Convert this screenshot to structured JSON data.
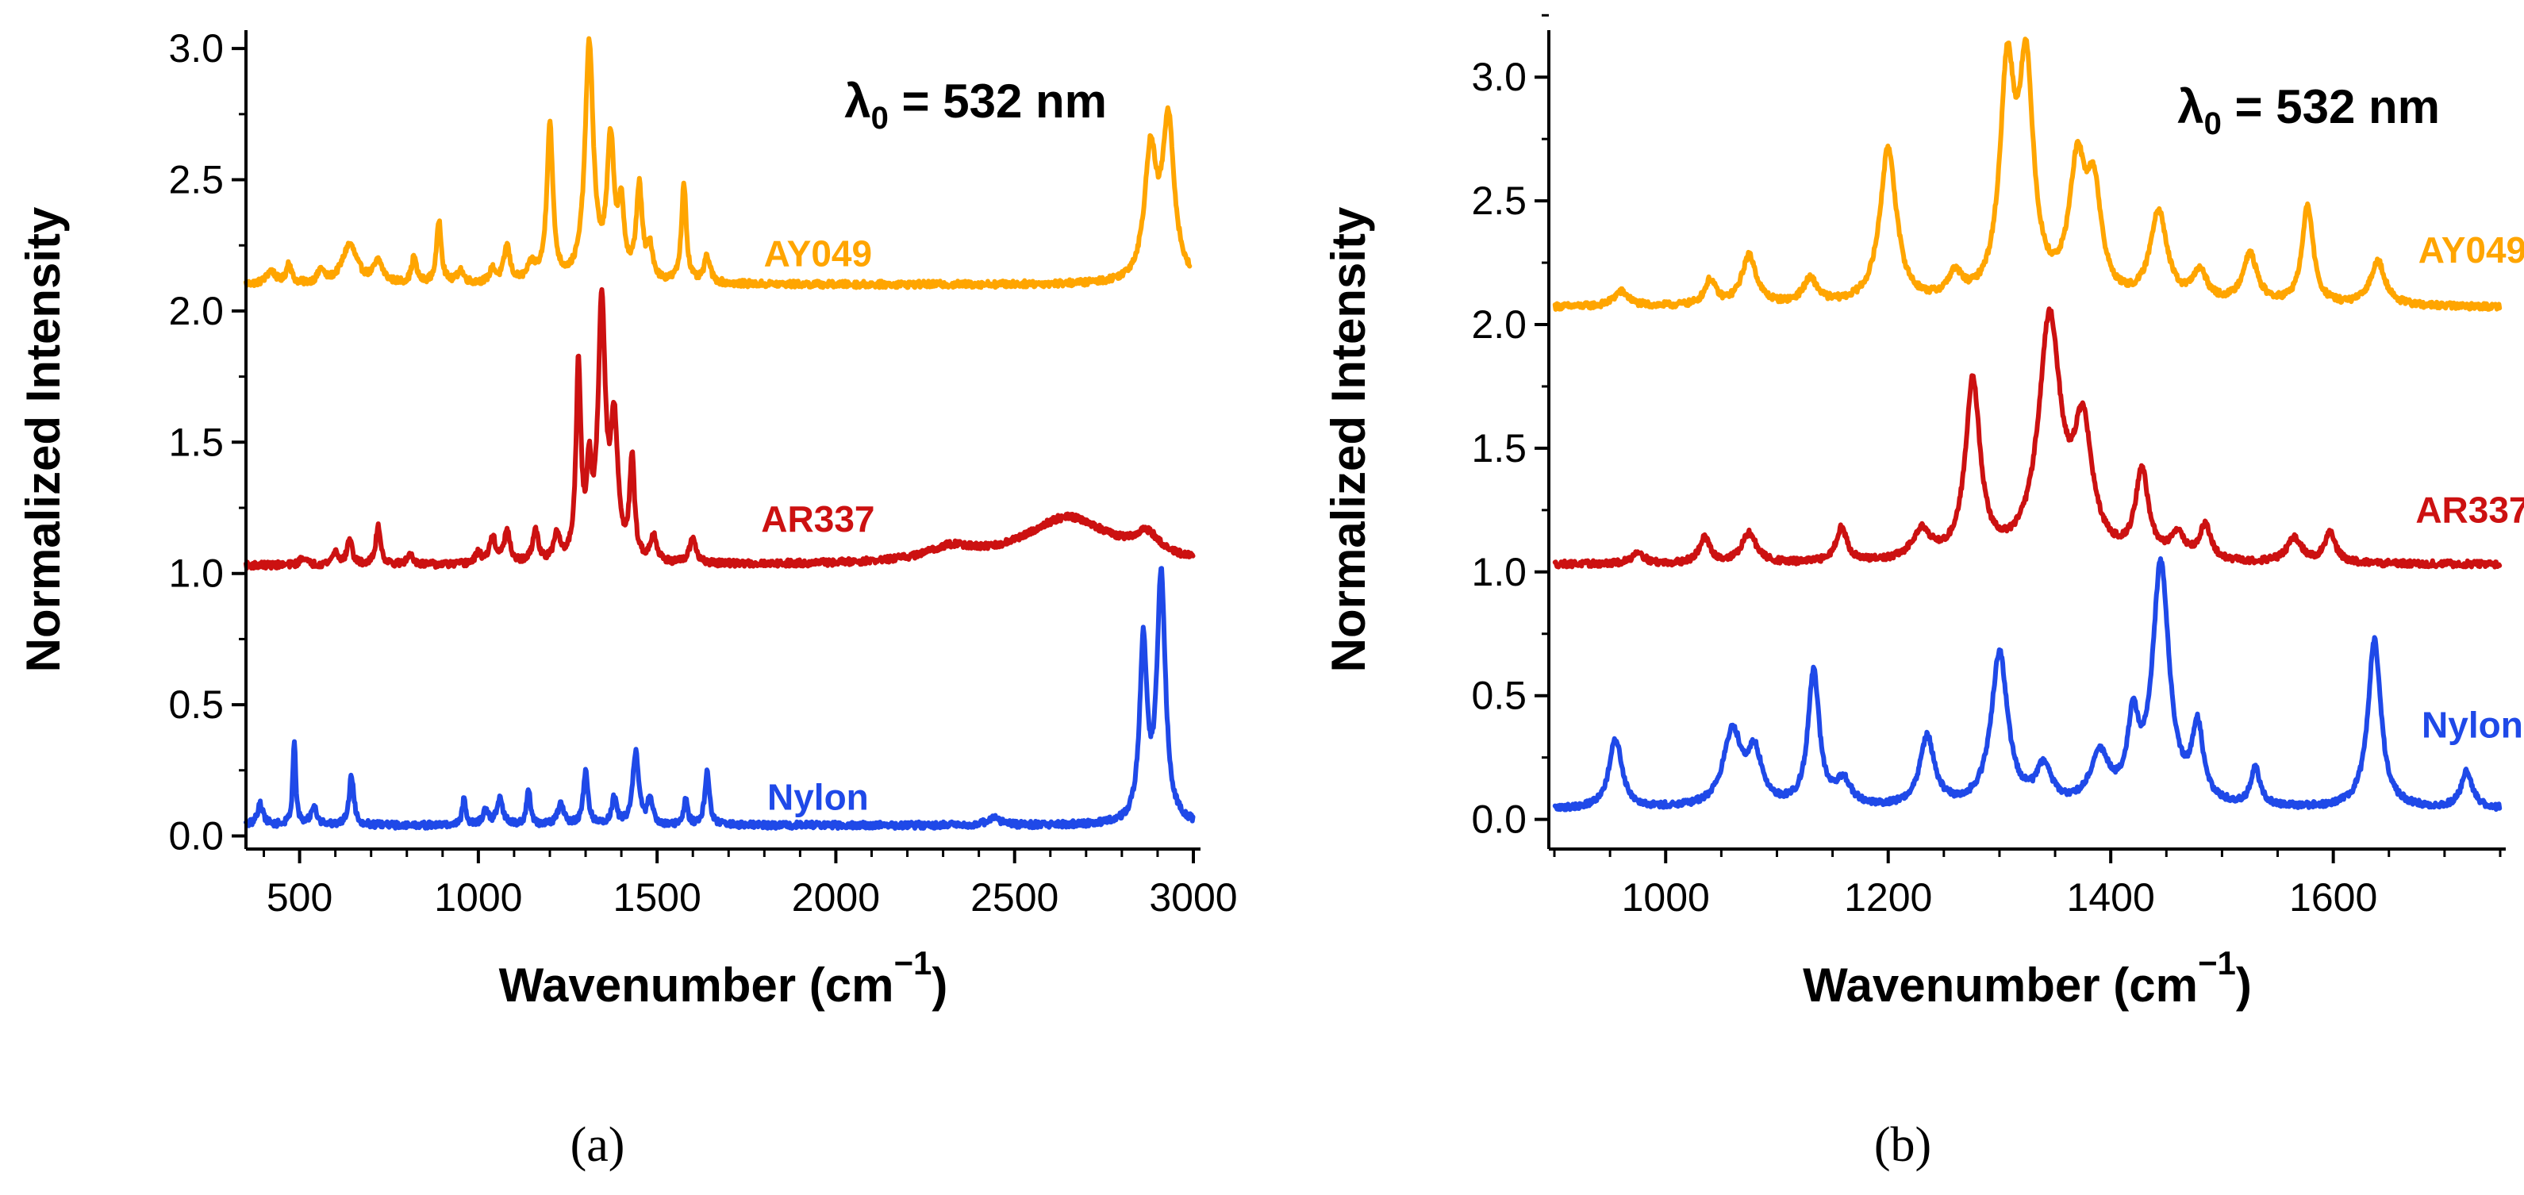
{
  "chart_data": [
    {
      "panel": "a",
      "type": "line",
      "title": "",
      "caption": "(a)",
      "annotation": {
        "lambda": "λ",
        "sub": "0",
        "rest": " = 532 nm"
      },
      "xlabel": {
        "main": "Wavenumber (cm",
        "sup": "−1",
        "close": ")"
      },
      "ylabel": "Normalized Intensity",
      "xlim": [
        350,
        3020
      ],
      "ylim": [
        -0.05,
        3.07
      ],
      "xticks": [
        500,
        1000,
        1500,
        2000,
        2500,
        3000
      ],
      "yticks": [
        "0.0",
        "0.5",
        "1.0",
        "1.5",
        "2.0",
        "2.5",
        "3.0"
      ],
      "grid": false,
      "series": [
        {
          "name": "AY049",
          "color": "#FFA500",
          "baseline": 2.1,
          "peaks": [
            [
              420,
              0.05,
              15
            ],
            [
              470,
              0.08,
              8
            ],
            [
              560,
              0.05,
              10
            ],
            [
              640,
              0.15,
              25
            ],
            [
              720,
              0.08,
              15
            ],
            [
              820,
              0.1,
              8
            ],
            [
              890,
              0.24,
              8
            ],
            [
              950,
              0.05,
              10
            ],
            [
              1040,
              0.05,
              10
            ],
            [
              1080,
              0.14,
              10
            ],
            [
              1150,
              0.06,
              15
            ],
            [
              1200,
              0.6,
              10
            ],
            [
              1310,
              0.9,
              14
            ],
            [
              1370,
              0.52,
              12
            ],
            [
              1400,
              0.25,
              10
            ],
            [
              1450,
              0.35,
              10
            ],
            [
              1480,
              0.12,
              10
            ],
            [
              1575,
              0.38,
              8
            ],
            [
              1640,
              0.1,
              10
            ],
            [
              2880,
              0.48,
              20
            ],
            [
              2930,
              0.6,
              20
            ]
          ],
          "x": [
            350,
            400,
            470,
            520,
            600,
            640,
            700,
            800,
            890,
            950,
            1000,
            1080,
            1150,
            1200,
            1250,
            1310,
            1370,
            1400,
            1450,
            1480,
            1530,
            1575,
            1640,
            1700,
            1800,
            2000,
            2200,
            2400,
            2600,
            2800,
            2880,
            2930,
            2990
          ],
          "y": [
            2.07,
            2.1,
            2.18,
            2.12,
            2.15,
            2.27,
            2.18,
            2.15,
            2.34,
            2.12,
            2.13,
            2.24,
            2.12,
            2.7,
            2.18,
            3.0,
            2.62,
            2.35,
            2.45,
            2.22,
            2.08,
            2.46,
            2.18,
            2.08,
            2.08,
            2.1,
            2.12,
            2.12,
            2.12,
            2.12,
            2.6,
            2.78,
            2.04
          ],
          "label_at": [
            1950,
            2.17
          ]
        },
        {
          "name": "AR337",
          "color": "#CC1111",
          "baseline": 1.03,
          "peaks": [
            [
              510,
              0.03,
              10
            ],
            [
              600,
              0.05,
              10
            ],
            [
              640,
              0.1,
              8
            ],
            [
              720,
              0.15,
              8
            ],
            [
              810,
              0.04,
              10
            ],
            [
              1000,
              0.04,
              10
            ],
            [
              1040,
              0.1,
              10
            ],
            [
              1080,
              0.12,
              10
            ],
            [
              1160,
              0.12,
              10
            ],
            [
              1220,
              0.1,
              10
            ],
            [
              1280,
              0.74,
              8
            ],
            [
              1310,
              0.3,
              8
            ],
            [
              1345,
              0.97,
              12
            ],
            [
              1380,
              0.5,
              12
            ],
            [
              1430,
              0.38,
              8
            ],
            [
              1490,
              0.1,
              10
            ],
            [
              1600,
              0.1,
              10
            ],
            [
              2320,
              0.05,
              80
            ],
            [
              2650,
              0.18,
              150
            ],
            [
              2870,
              0.08,
              40
            ]
          ],
          "x": [
            350,
            450,
            600,
            640,
            720,
            800,
            900,
            1040,
            1080,
            1160,
            1220,
            1280,
            1310,
            1345,
            1380,
            1430,
            1490,
            1550,
            1600,
            1700,
            1900,
            2100,
            2300,
            2450,
            2550,
            2620,
            2700,
            2800,
            2870,
            2950,
            3000
          ],
          "y": [
            1.05,
            1.03,
            1.08,
            1.12,
            1.18,
            1.06,
            1.05,
            1.13,
            1.15,
            1.15,
            1.13,
            1.77,
            1.33,
            2.0,
            1.55,
            1.43,
            1.13,
            1.05,
            1.12,
            1.04,
            1.06,
            1.04,
            1.07,
            1.06,
            1.12,
            1.25,
            1.17,
            1.13,
            1.1,
            1.06,
            1.03
          ],
          "label_at": [
            1950,
            1.16
          ]
        },
        {
          "name": "Nylon",
          "color": "#1F49E8",
          "baseline": 0.04,
          "peaks": [
            [
              390,
              0.08,
              10
            ],
            [
              485,
              0.32,
              5
            ],
            [
              540,
              0.07,
              10
            ],
            [
              645,
              0.19,
              8
            ],
            [
              960,
              0.1,
              6
            ],
            [
              1020,
              0.05,
              10
            ],
            [
              1060,
              0.1,
              10
            ],
            [
              1140,
              0.14,
              6
            ],
            [
              1230,
              0.08,
              10
            ],
            [
              1300,
              0.2,
              8
            ],
            [
              1380,
              0.1,
              8
            ],
            [
              1440,
              0.28,
              10
            ],
            [
              1480,
              0.1,
              8
            ],
            [
              1580,
              0.1,
              6
            ],
            [
              1640,
              0.2,
              8
            ],
            [
              2440,
              0.03,
              20
            ],
            [
              2860,
              0.68,
              12
            ],
            [
              2910,
              0.95,
              14
            ]
          ],
          "x": [
            350,
            390,
            485,
            540,
            645,
            700,
            800,
            960,
            1060,
            1140,
            1230,
            1300,
            1380,
            1440,
            1480,
            1580,
            1640,
            1700,
            1900,
            2100,
            2300,
            2440,
            2600,
            2800,
            2860,
            2910,
            2960,
            3000
          ],
          "y": [
            0.03,
            0.12,
            0.36,
            0.1,
            0.23,
            0.05,
            0.05,
            0.13,
            0.14,
            0.18,
            0.12,
            0.24,
            0.14,
            0.33,
            0.14,
            0.14,
            0.24,
            0.05,
            0.04,
            0.04,
            0.03,
            0.07,
            0.04,
            0.07,
            0.72,
            1.0,
            0.3,
            0.12
          ],
          "label_at": [
            1950,
            0.1
          ]
        }
      ]
    },
    {
      "panel": "b",
      "type": "line",
      "title": "",
      "caption": "(b)",
      "annotation": {
        "lambda": "λ",
        "sub": "0",
        "rest": " = 532 nm"
      },
      "xlabel": {
        "main": "Wavenumber (cm",
        "sup": "−1",
        "close": ")"
      },
      "ylabel": "Normalized Intensity",
      "xlim": [
        895,
        1755
      ],
      "ylim": [
        -0.12,
        3.19
      ],
      "xticks": [
        1000,
        1200,
        1400,
        1600
      ],
      "yticks": [
        "0.0",
        "0.5",
        "1.0",
        "1.5",
        "2.0",
        "2.5",
        "3.0"
      ],
      "grid": false,
      "series": [
        {
          "name": "AY049",
          "color": "#FFA500",
          "baseline": 2.07,
          "peaks": [
            [
              960,
              0.06,
              8
            ],
            [
              1040,
              0.1,
              6
            ],
            [
              1075,
              0.2,
              8
            ],
            [
              1130,
              0.1,
              8
            ],
            [
              1200,
              0.63,
              9
            ],
            [
              1260,
              0.1,
              8
            ],
            [
              1307,
              0.88,
              8
            ],
            [
              1324,
              0.88,
              8
            ],
            [
              1370,
              0.52,
              9
            ],
            [
              1385,
              0.4,
              8
            ],
            [
              1443,
              0.37,
              9
            ],
            [
              1480,
              0.12,
              8
            ],
            [
              1525,
              0.2,
              8
            ],
            [
              1577,
              0.4,
              6
            ],
            [
              1640,
              0.18,
              8
            ]
          ],
          "x": [
            900,
            960,
            1000,
            1040,
            1075,
            1100,
            1130,
            1160,
            1200,
            1230,
            1260,
            1307,
            1324,
            1345,
            1370,
            1385,
            1410,
            1443,
            1480,
            1525,
            1550,
            1577,
            1600,
            1640,
            1700,
            1750
          ],
          "y": [
            2.1,
            2.12,
            2.05,
            2.16,
            2.28,
            2.12,
            2.18,
            2.1,
            2.7,
            2.12,
            2.18,
            3.0,
            2.98,
            2.38,
            2.62,
            2.55,
            2.25,
            2.45,
            2.17,
            2.2,
            2.02,
            2.46,
            2.08,
            2.24,
            2.05,
            2.1
          ],
          "label_at": [
            1725,
            2.25
          ]
        },
        {
          "name": "AR337",
          "color": "#CC1111",
          "baseline": 1.03,
          "peaks": [
            [
              975,
              0.05,
              6
            ],
            [
              1035,
              0.1,
              6
            ],
            [
              1075,
              0.12,
              8
            ],
            [
              1158,
              0.14,
              6
            ],
            [
              1230,
              0.12,
              10
            ],
            [
              1276,
              0.72,
              8
            ],
            [
              1345,
              0.96,
              12
            ],
            [
              1375,
              0.5,
              10
            ],
            [
              1428,
              0.35,
              7
            ],
            [
              1460,
              0.1,
              8
            ],
            [
              1485,
              0.14,
              6
            ],
            [
              1565,
              0.1,
              8
            ],
            [
              1597,
              0.12,
              6
            ]
          ],
          "x": [
            900,
            975,
            1035,
            1075,
            1110,
            1158,
            1200,
            1250,
            1276,
            1300,
            1345,
            1375,
            1400,
            1428,
            1460,
            1485,
            1520,
            1565,
            1597,
            1650,
            1700,
            1750
          ],
          "y": [
            1.07,
            1.08,
            1.14,
            1.16,
            1.05,
            1.18,
            1.1,
            1.25,
            1.77,
            1.15,
            2.0,
            1.56,
            1.15,
            1.38,
            1.12,
            1.18,
            1.05,
            1.13,
            1.15,
            1.07,
            1.04,
            1.04
          ],
          "label_at": [
            1725,
            1.2
          ]
        },
        {
          "name": "Nylon",
          "color": "#1F49E8",
          "baseline": 0.04,
          "peaks": [
            [
              955,
              0.28,
              7
            ],
            [
              1060,
              0.3,
              10
            ],
            [
              1080,
              0.2,
              8
            ],
            [
              1133,
              0.55,
              6
            ],
            [
              1160,
              0.1,
              8
            ],
            [
              1235,
              0.28,
              8
            ],
            [
              1300,
              0.62,
              9
            ],
            [
              1340,
              0.15,
              8
            ],
            [
              1390,
              0.2,
              10
            ],
            [
              1420,
              0.3,
              6
            ],
            [
              1445,
              0.97,
              9
            ],
            [
              1478,
              0.3,
              6
            ],
            [
              1530,
              0.15,
              5
            ],
            [
              1637,
              0.68,
              7
            ],
            [
              1720,
              0.15,
              6
            ]
          ],
          "x": [
            900,
            955,
            1000,
            1060,
            1080,
            1100,
            1133,
            1160,
            1200,
            1235,
            1260,
            1300,
            1340,
            1390,
            1420,
            1445,
            1478,
            1500,
            1530,
            1600,
            1637,
            1680,
            1720,
            1750
          ],
          "y": [
            0.06,
            0.33,
            0.02,
            0.38,
            0.3,
            0.1,
            0.59,
            0.12,
            0.05,
            0.33,
            0.15,
            0.67,
            0.2,
            0.28,
            0.4,
            1.02,
            0.32,
            0.08,
            0.2,
            0.06,
            0.72,
            0.1,
            0.18,
            0.08
          ],
          "label_at": [
            1725,
            0.33
          ]
        }
      ]
    }
  ]
}
